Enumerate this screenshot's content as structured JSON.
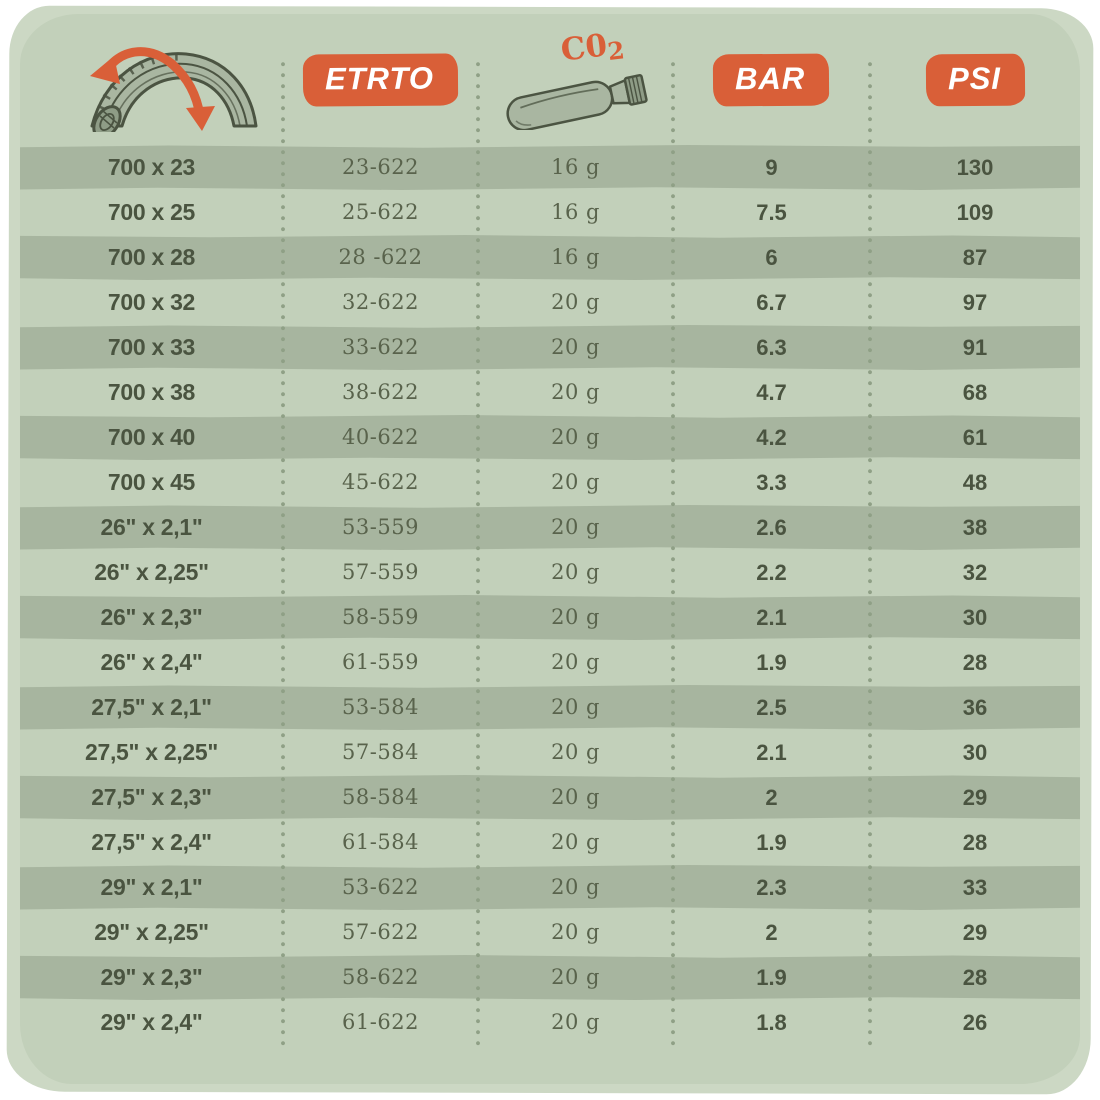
{
  "title": "Bike tyre size / CO2 cartridge / pressure conversion chart",
  "colors": {
    "accent_orange": "#d95f38",
    "card_green": "#c2d0ba",
    "stripe_green": "#a7b59f",
    "backdrop_green": "#ccd8c4",
    "text_dark": "#4a5440",
    "text_mid": "#59634c",
    "badge_text": "#ffffff",
    "dots": "#8fa086",
    "icon_outline": "#4b5442",
    "icon_fill": "#a9b6a1"
  },
  "header": {
    "tire_icon": "tire-cross-section-with-arrows-icon",
    "etrto_label": "ETRTO",
    "co2_label_main": "C0",
    "co2_label_sub": "2",
    "co2_icon": "co2-cartridge-icon",
    "bar_label": "BAR",
    "psi_label": "PSI"
  },
  "chart_data": {
    "type": "table",
    "columns": [
      "tyre size (tire icon)",
      "ETRTO",
      "C02 (cartridge icon)",
      "BAR",
      "PSI"
    ],
    "rows": [
      [
        "700 x 23",
        "23-622",
        "16 g",
        "9",
        "130"
      ],
      [
        "700 x 25",
        "25-622",
        "16 g",
        "7.5",
        "109"
      ],
      [
        "700 x 28",
        "28 -622",
        "16 g",
        "6",
        "87"
      ],
      [
        "700 x 32",
        "32-622",
        "20 g",
        "6.7",
        "97"
      ],
      [
        "700 x 33",
        "33-622",
        "20 g",
        "6.3",
        "91"
      ],
      [
        "700 x 38",
        "38-622",
        "20 g",
        "4.7",
        "68"
      ],
      [
        "700 x 40",
        "40-622",
        "20 g",
        "4.2",
        "61"
      ],
      [
        "700 x 45",
        "45-622",
        "20 g",
        "3.3",
        "48"
      ],
      [
        "26\" x 2,1\"",
        "53-559",
        "20 g",
        "2.6",
        "38"
      ],
      [
        "26\" x 2,25\"",
        "57-559",
        "20 g",
        "2.2",
        "32"
      ],
      [
        "26\" x 2,3\"",
        "58-559",
        "20 g",
        "2.1",
        "30"
      ],
      [
        "26\" x 2,4\"",
        "61-559",
        "20 g",
        "1.9",
        "28"
      ],
      [
        "27,5\" x 2,1\"",
        "53-584",
        "20 g",
        "2.5",
        "36"
      ],
      [
        "27,5\" x 2,25\"",
        "57-584",
        "20 g",
        "2.1",
        "30"
      ],
      [
        "27,5\" x 2,3\"",
        "58-584",
        "20 g",
        "2",
        "29"
      ],
      [
        "27,5\" x 2,4\"",
        "61-584",
        "20 g",
        "1.9",
        "28"
      ],
      [
        "29\" x 2,1\"",
        "53-622",
        "20 g",
        "2.3",
        "33"
      ],
      [
        "29\" x 2,25\"",
        "57-622",
        "20 g",
        "2",
        "29"
      ],
      [
        "29\" x 2,3\"",
        "58-622",
        "20 g",
        "1.9",
        "28"
      ],
      [
        "29\" x 2,4\"",
        "61-622",
        "20 g",
        "1.8",
        "26"
      ]
    ]
  }
}
